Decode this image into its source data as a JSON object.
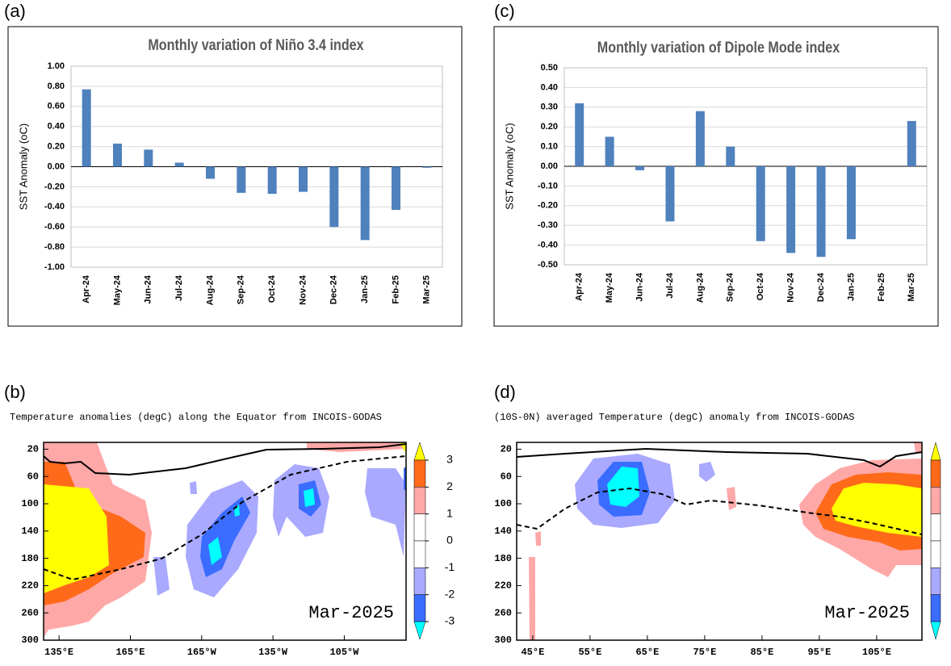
{
  "chart_data": [
    {
      "type": "bar",
      "label": "(a)",
      "title": "Monthly variation of Niño 3.4 index",
      "y_label": "SST Anomaly (oC)",
      "categories": [
        "Apr-24",
        "May-24",
        "Jun-24",
        "Jul-24",
        "Aug-24",
        "Sep-24",
        "Oct-24",
        "Nov-24",
        "Dec-24",
        "Jan-25",
        "Feb-25",
        "Mar-25"
      ],
      "values": [
        0.77,
        0.23,
        0.17,
        0.04,
        -0.12,
        -0.26,
        -0.27,
        -0.25,
        -0.6,
        -0.73,
        -0.43,
        -0.01
      ],
      "color": "#4f81bd",
      "ylim": [
        -1,
        1
      ],
      "yticks": [
        {
          "value": -1,
          "label": "-1.00"
        },
        {
          "value": -0.8,
          "label": "-0.80"
        },
        {
          "value": -0.6,
          "label": "-0.60"
        },
        {
          "value": -0.4,
          "label": "-0.40"
        },
        {
          "value": -0.2,
          "label": "-0.20"
        },
        {
          "value": 0,
          "label": "0.00"
        },
        {
          "value": 0.2,
          "label": "0.20"
        },
        {
          "value": 0.4,
          "label": "0.40"
        },
        {
          "value": 0.6,
          "label": "0.60"
        },
        {
          "value": 0.8,
          "label": "0.80"
        },
        {
          "value": 1,
          "label": "1.00"
        }
      ],
      "grid": true
    },
    {
      "type": "contour",
      "label": "(b)",
      "title": "Temperature anomalies (degC) along the Equator from INCOIS-GODAS",
      "annotation": "Mar-2025",
      "xlim": [
        128.5,
        281
      ],
      "xticks": [
        {
          "value": 135,
          "label": "135°E"
        },
        {
          "value": 165,
          "label": "165°E"
        },
        {
          "value": 195,
          "label": "165°W"
        },
        {
          "value": 225,
          "label": "135°W"
        },
        {
          "value": 255,
          "label": "105°W"
        }
      ],
      "ylim": [
        300,
        10
      ],
      "yticks": [
        20,
        60,
        100,
        140,
        180,
        220,
        260,
        300
      ],
      "colorbar": {
        "colors": [
          "#ffff00",
          "#ff6a1a",
          "#ffa8a8",
          "#ffffff",
          "#ffffff",
          "#a9a9ff",
          "#3a6cff",
          "#00ffff"
        ],
        "ticks": [
          3,
          2,
          1,
          0,
          -1,
          -2,
          -3
        ]
      }
    },
    {
      "type": "bar",
      "label": "(c)",
      "title": "Monthly variation of Dipole Mode index",
      "y_label": "SST Anomaly (oC)",
      "categories": [
        "Apr-24",
        "May-24",
        "Jun-24",
        "Jul-24",
        "Aug-24",
        "Sep-24",
        "Oct-24",
        "Nov-24",
        "Dec-24",
        "Jan-25",
        "Feb-25",
        "Mar-25"
      ],
      "values": [
        0.32,
        0.15,
        -0.02,
        -0.28,
        0.28,
        0.1,
        -0.38,
        -0.44,
        -0.46,
        -0.37,
        0,
        0.23
      ],
      "color": "#4f81bd",
      "ylim": [
        -0.5,
        0.5
      ],
      "yticks": [
        {
          "value": -0.5,
          "label": "-0.50"
        },
        {
          "value": -0.4,
          "label": "-0.40"
        },
        {
          "value": -0.3,
          "label": "-0.30"
        },
        {
          "value": -0.2,
          "label": "-0.20"
        },
        {
          "value": -0.1,
          "label": "-0.10"
        },
        {
          "value": 0,
          "label": "0.00"
        },
        {
          "value": 0.1,
          "label": "0.10"
        },
        {
          "value": 0.2,
          "label": "0.20"
        },
        {
          "value": 0.3,
          "label": "0.30"
        },
        {
          "value": 0.4,
          "label": "0.40"
        },
        {
          "value": 0.5,
          "label": "0.50"
        }
      ],
      "grid": true
    },
    {
      "type": "contour",
      "label": "(d)",
      "title": "(10S-0N) averaged Temperature (degC) anomaly from INCOIS-GODAS",
      "annotation": "Mar-2025",
      "xlim": [
        42.2,
        112.9
      ],
      "xticks": [
        {
          "value": 45,
          "label": "45°E"
        },
        {
          "value": 55,
          "label": "55°E"
        },
        {
          "value": 65,
          "label": "65°E"
        },
        {
          "value": 75,
          "label": "75°E"
        },
        {
          "value": 85,
          "label": "85°E"
        },
        {
          "value": 95,
          "label": "95°E"
        },
        {
          "value": 105,
          "label": "105°E"
        }
      ],
      "ylim": [
        300,
        10
      ],
      "yticks": [
        20,
        60,
        100,
        140,
        180,
        220,
        260,
        300
      ],
      "colorbar": {
        "colors": [
          "#ffff00",
          "#ff6a1a",
          "#ffa8a8",
          "#ffffff",
          "#ffffff",
          "#a9a9ff",
          "#3a6cff",
          "#00ffff"
        ]
      }
    }
  ]
}
